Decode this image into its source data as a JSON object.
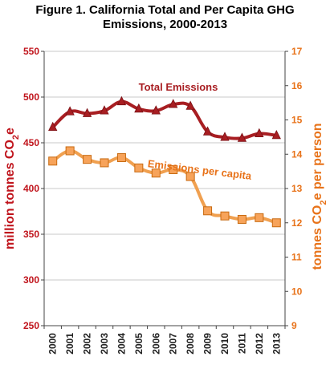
{
  "figure_title_line1": "Figure 1. California Total and Per Capita GHG",
  "figure_title_line2": "Emissions, 2000-2013",
  "chart_data": {
    "type": "line",
    "title": "Figure 1. California Total and Per Capita GHG Emissions, 2000-2013",
    "x": [
      2000,
      2001,
      2002,
      2003,
      2004,
      2005,
      2006,
      2007,
      2008,
      2009,
      2010,
      2011,
      2012,
      2013
    ],
    "x_tick_labels": [
      "2000",
      "2001",
      "2002",
      "2003",
      "2004",
      "2005",
      "2006",
      "2007",
      "2008",
      "2009",
      "2010",
      "2011",
      "2012",
      "2013"
    ],
    "y_left": {
      "label": "million tonnes CO",
      "label_subscript": "2",
      "label_suffix": "e",
      "range": [
        250,
        550
      ],
      "ticks": [
        250,
        300,
        350,
        400,
        450,
        500,
        550
      ],
      "color": "#c0141c"
    },
    "y_right": {
      "label": "tonnes CO",
      "label_subscript": "2",
      "label_suffix": "e per person",
      "range": [
        9,
        17
      ],
      "ticks": [
        9,
        10,
        11,
        12,
        13,
        14,
        15,
        16,
        17
      ],
      "color": "#e8731a"
    },
    "series": [
      {
        "name": "Total Emissions",
        "axis": "left",
        "color": "#a81e22",
        "marker": "triangle",
        "values": [
          467,
          484,
          482,
          485,
          495,
          487,
          485,
          492,
          490,
          462,
          456,
          455,
          460,
          458
        ]
      },
      {
        "name": "Emissions per capita",
        "axis": "right",
        "color": "#f0a050",
        "marker_color": "#f7a35a",
        "marker": "square",
        "values": [
          13.8,
          14.1,
          13.85,
          13.75,
          13.9,
          13.6,
          13.45,
          13.55,
          13.35,
          12.35,
          12.2,
          12.1,
          12.15,
          12.0
        ]
      }
    ],
    "grid": "horizontal",
    "legend": "inline labels"
  }
}
